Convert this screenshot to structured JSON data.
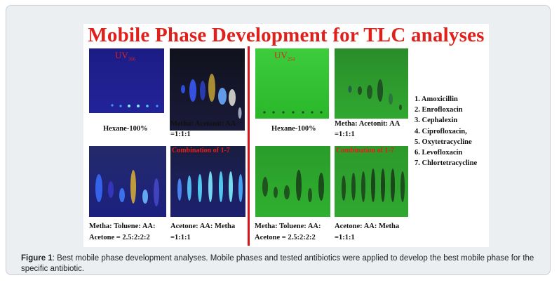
{
  "figure": {
    "title": "Mobile Phase Development for TLC analyses",
    "uv_left": {
      "main": "UV",
      "sub": "366"
    },
    "uv_right": {
      "main": "UV",
      "sub": "254"
    },
    "plates": {
      "uv366_hexane": "Hexane-100%",
      "uv366_metha_acetonit": [
        "Metha: Acetonit: AA",
        "=1:1:1"
      ],
      "uv366_metha_toluene": [
        "Metha: Toluene: AA:",
        "Acetone = 2.5:2:2:2"
      ],
      "uv366_acetone": [
        "Acetone: AA: Metha",
        "=1:1:1"
      ],
      "uv254_hexane": "Hexane-100%",
      "uv254_metha_acetonit": [
        "Metha: Acetonit: AA",
        "=1:1:1"
      ],
      "uv254_metha_toluene": [
        "Metha: Toluene: AA:",
        "Acetone = 2.5:2:2:2"
      ],
      "uv254_acetone": [
        "Acetone: AA: Metha",
        "=1:1:1"
      ]
    },
    "combination_label": "Combination of 1-7",
    "antibiotics": [
      "1.  Amoxicillin",
      "2.  Enrofloxacin",
      "3.   Cephalexin",
      "4.  Ciprofloxacin,",
      "5.  Oxytetracycline",
      "6.  Levofloxacin",
      "7.  Chlortetracycline"
    ]
  },
  "caption": {
    "label": "Figure 1",
    "text": ": Best mobile phase development analyses. Mobile phases and tested antibiotics were applied to develop the best mobile phase for the specific antibiotic."
  },
  "colors": {
    "title_red": "#e0201a",
    "uv366_plate": "#1a1a8c",
    "uv254_plate": "#16b416"
  }
}
